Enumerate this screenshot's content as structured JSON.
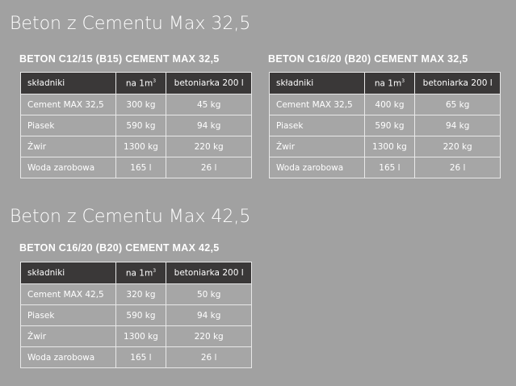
{
  "sections": [
    {
      "title": "Beton z Cementu Max 32,5",
      "tables": [
        {
          "heading": "BETON C12/15 (B15) CEMENT MAX 32,5",
          "columns": [
            "składniki",
            "na 1m",
            "betoniarka 200 l"
          ],
          "unit_sup": "3",
          "rows": [
            [
              "Cement MAX 32,5",
              "300 kg",
              "45 kg"
            ],
            [
              "Piasek",
              "590 kg",
              "94 kg"
            ],
            [
              "Żwir",
              "1300 kg",
              "220 kg"
            ],
            [
              "Woda zarobowa",
              "165 l",
              "26 l"
            ]
          ]
        },
        {
          "heading": "BETON C16/20 (B20) CEMENT MAX 32,5",
          "columns": [
            "składniki",
            "na 1m",
            "betoniarka 200 l"
          ],
          "unit_sup": "3",
          "rows": [
            [
              "Cement MAX 32,5",
              "400 kg",
              "65 kg"
            ],
            [
              "Piasek",
              "590 kg",
              "94 kg"
            ],
            [
              "Żwir",
              "1300 kg",
              "220 kg"
            ],
            [
              "Woda zarobowa",
              "165 l",
              "26 l"
            ]
          ]
        }
      ]
    },
    {
      "title": "Beton z Cementu Max 42,5",
      "tables": [
        {
          "heading": "BETON C16/20 (B20) CEMENT MAX 42,5",
          "columns": [
            "składniki",
            "na 1m",
            "betoniarka 200 l"
          ],
          "unit_sup": "3",
          "rows": [
            [
              "Cement MAX 42,5",
              "320 kg",
              "50 kg"
            ],
            [
              "Piasek",
              "590 kg",
              "94 kg"
            ],
            [
              "Żwir",
              "1300 kg",
              "220 kg"
            ],
            [
              "Woda zarobowa",
              "165 l",
              "26 l"
            ]
          ]
        }
      ]
    }
  ]
}
